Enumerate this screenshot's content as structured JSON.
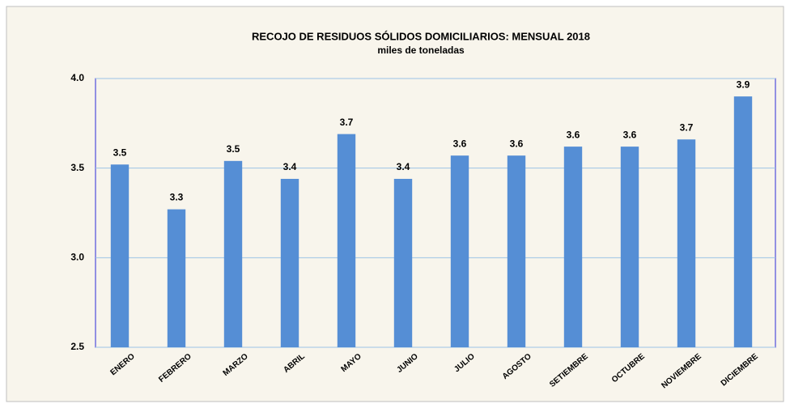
{
  "chart_data": {
    "type": "bar",
    "title": "RECOJO DE RESIDUOS SÓLIDOS DOMICILIARIOS: MENSUAL 2018",
    "subtitle": "miles de toneladas",
    "categories": [
      "ENERO",
      "FEBRERO",
      "MARZO",
      "ABRIL",
      "MAYO",
      "JUNIO",
      "JULIO",
      "AGOSTO",
      "SETIEMBRE",
      "OCTUBRE",
      "NOVIEMBRE",
      "DICIEMBRE"
    ],
    "values": [
      3.52,
      3.27,
      3.54,
      3.44,
      3.69,
      3.44,
      3.57,
      3.57,
      3.62,
      3.62,
      3.66,
      3.9
    ],
    "value_labels": [
      "3.5",
      "3.3",
      "3.5",
      "3.4",
      "3.7",
      "3.4",
      "3.6",
      "3.6",
      "3.6",
      "3.6",
      "3.7",
      "3.9"
    ],
    "color": "#558ed5",
    "ylim": [
      2.5,
      4.0
    ],
    "yticks": [
      2.5,
      {
        "value": 3,
        "label": "3.0"
      },
      3.5,
      {
        "value": 4,
        "label": "4.0"
      }
    ],
    "grid": true
  }
}
